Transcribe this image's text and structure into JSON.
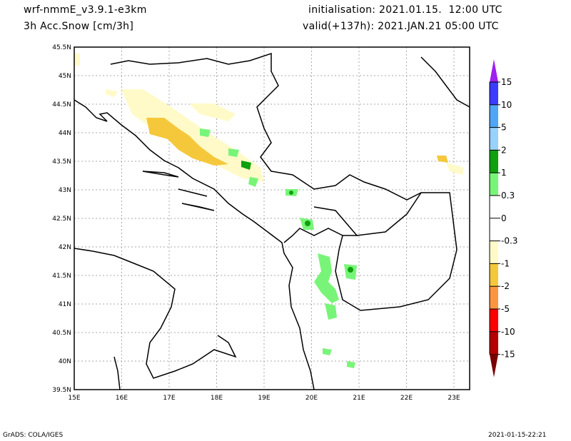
{
  "header": {
    "model": "wrf-nmmE_v3.9.1-e3km",
    "variable": "3h Acc.Snow [cm/3h]",
    "initialisation": "initialisation: 2021.01.15.  12:00 UTC",
    "valid": "valid(+137h): 2021.JAN.21 05:00 UTC"
  },
  "map": {
    "lon_labels": [
      "15E",
      "16E",
      "17E",
      "18E",
      "19E",
      "20E",
      "21E",
      "22E",
      "23E"
    ],
    "lat_labels": [
      "45.5N",
      "45N",
      "44.5N",
      "44N",
      "43.5N",
      "43N",
      "42.5N",
      "42N",
      "41.5N",
      "41N",
      "40.5N",
      "40N",
      "39.5N"
    ]
  },
  "legend": [
    {
      "label": "15",
      "color": "#3c3cff"
    },
    {
      "label": "10",
      "color": "#50a5f5"
    },
    {
      "label": "5",
      "color": "#96d2fa"
    },
    {
      "label": "2",
      "color": "#0fa00f"
    },
    {
      "label": "1",
      "color": "#78f578"
    },
    {
      "label": "0.3",
      "color": "#ffffff"
    },
    {
      "label": "0",
      "color": "#ffffff"
    },
    {
      "label": "-0.3",
      "color": "#fffac8"
    },
    {
      "label": "-1",
      "color": "#f5c83c"
    },
    {
      "label": "-2",
      "color": "#fa9641"
    },
    {
      "label": "-5",
      "color": "#ff0000"
    },
    {
      "label": "-10",
      "color": "#b40000"
    },
    {
      "label": "-15",
      "color": ""
    }
  ],
  "legend_top_color": "#a020f0",
  "legend_bottom_color": "#780000",
  "footer": {
    "left": "GrADS: COLA/IGES",
    "right": "2021-01-15-22:21"
  }
}
